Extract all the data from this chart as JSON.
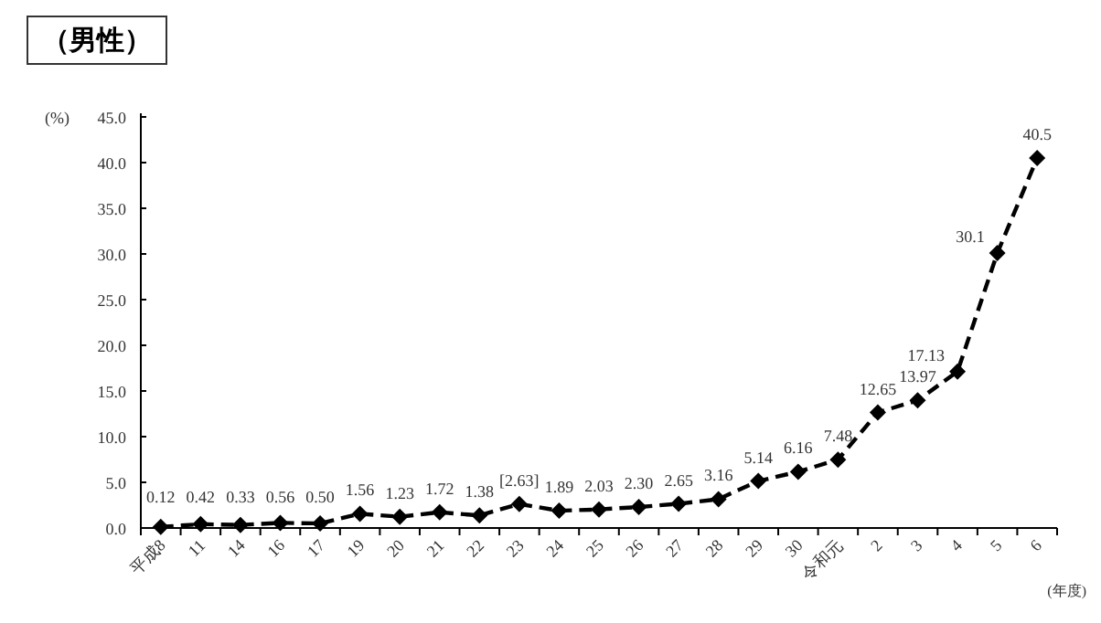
{
  "chart_data": {
    "type": "line",
    "title": "（男性）",
    "ylabel": "(%)",
    "xlabel": "(年度)",
    "categories": [
      "平成8",
      "11",
      "14",
      "16",
      "17",
      "19",
      "20",
      "21",
      "22",
      "23",
      "24",
      "25",
      "26",
      "27",
      "28",
      "29",
      "30",
      "令和元",
      "2",
      "3",
      "4",
      "5",
      "6"
    ],
    "series": [
      {
        "color": "#000000",
        "values": [
          0.12,
          0.42,
          0.33,
          0.56,
          0.5,
          1.56,
          1.23,
          1.72,
          1.38,
          2.63,
          1.89,
          2.03,
          2.3,
          2.65,
          3.16,
          5.14,
          6.16,
          7.48,
          12.65,
          13.97,
          17.13,
          30.1,
          40.5
        ],
        "value_labels": [
          "0.12",
          "0.42",
          "0.33",
          "0.56",
          "0.50",
          "1.56",
          "1.23",
          "1.72",
          "1.38",
          "[2.63]",
          "1.89",
          "2.03",
          "2.30",
          "2.65",
          "3.16",
          "5.14",
          "6.16",
          "7.48",
          "12.65",
          "13.97",
          "17.13",
          "30.1",
          "40.5"
        ]
      }
    ],
    "ylim": [
      0,
      45
    ],
    "yticks": [
      {
        "value": 0,
        "label": "0.0"
      },
      {
        "value": 5,
        "label": "5.0"
      },
      {
        "value": 10,
        "label": "10.0"
      },
      {
        "value": 15,
        "label": "15.0"
      },
      {
        "value": 20,
        "label": "20.0"
      },
      {
        "value": 25,
        "label": "25.0"
      },
      {
        "value": 30,
        "label": "30.0"
      },
      {
        "value": 35,
        "label": "35.0"
      },
      {
        "value": 40,
        "label": "40.0"
      },
      {
        "value": 45,
        "label": "45.0"
      }
    ],
    "marker": "diamond",
    "line_style": "dashed"
  }
}
